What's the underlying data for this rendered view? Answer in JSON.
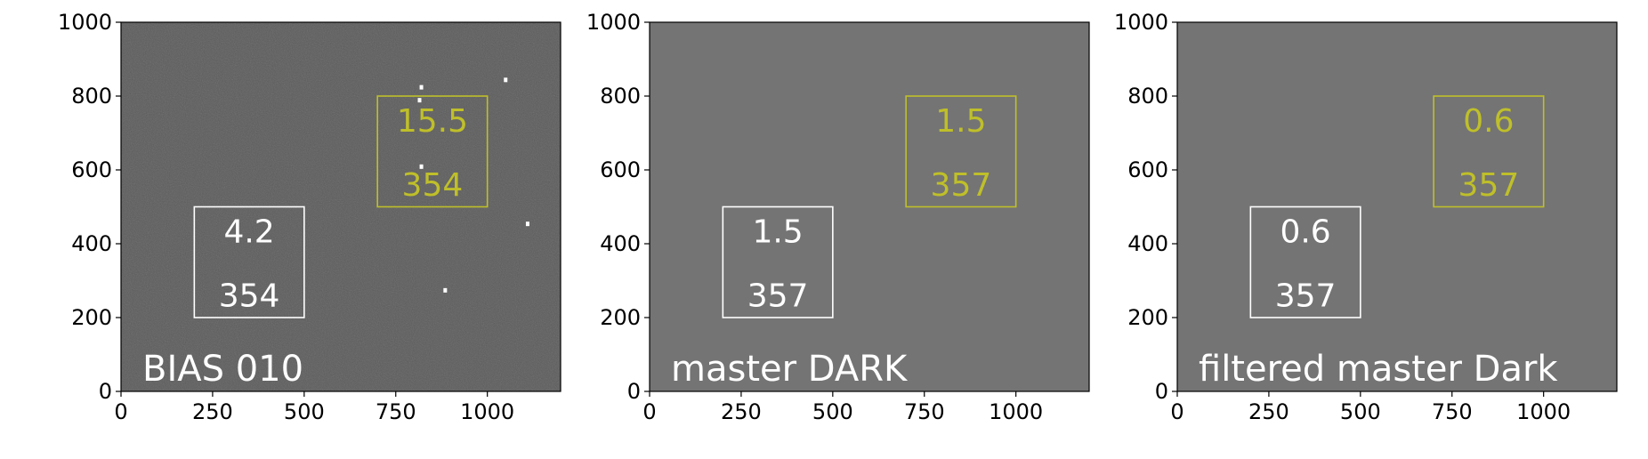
{
  "chart_data": [
    {
      "type": "heatmap",
      "label": "BIAS 010",
      "xlim": [
        0,
        1200
      ],
      "ylim": [
        0,
        1000
      ],
      "x_ticks": [
        "0",
        "250",
        "500",
        "750",
        "1000"
      ],
      "y_ticks": [
        "0",
        "200",
        "400",
        "600",
        "800",
        "1000"
      ],
      "background": "#5c5c5c",
      "noisy": true,
      "hot_pixels": [
        {
          "x": 1050,
          "y": 845
        },
        {
          "x": 820,
          "y": 825
        },
        {
          "x": 820,
          "y": 610
        },
        {
          "x": 1110,
          "y": 455
        },
        {
          "x": 885,
          "y": 275
        },
        {
          "x": 815,
          "y": 790
        }
      ],
      "regions": [
        {
          "x": [
            200,
            500
          ],
          "y": [
            200,
            500
          ],
          "color": "#ffffff",
          "value": "4.2",
          "count": "354"
        },
        {
          "x": [
            700,
            1000
          ],
          "y": [
            500,
            800
          ],
          "color": "#bfbf2a",
          "value": "15.5",
          "count": "354"
        }
      ]
    },
    {
      "type": "heatmap",
      "label": "master DARK",
      "xlim": [
        0,
        1200
      ],
      "ylim": [
        0,
        1000
      ],
      "x_ticks": [
        "0",
        "250",
        "500",
        "750",
        "1000"
      ],
      "y_ticks": [
        "0",
        "200",
        "400",
        "600",
        "800",
        "1000"
      ],
      "background": "#747474",
      "noisy": false,
      "hot_pixels": [],
      "regions": [
        {
          "x": [
            200,
            500
          ],
          "y": [
            200,
            500
          ],
          "color": "#ffffff",
          "value": "1.5",
          "count": "357"
        },
        {
          "x": [
            700,
            1000
          ],
          "y": [
            500,
            800
          ],
          "color": "#bfbf2a",
          "value": "1.5",
          "count": "357"
        }
      ]
    },
    {
      "type": "heatmap",
      "label": "filtered master Dark",
      "xlim": [
        0,
        1200
      ],
      "ylim": [
        0,
        1000
      ],
      "x_ticks": [
        "0",
        "250",
        "500",
        "750",
        "1000"
      ],
      "y_ticks": [
        "0",
        "200",
        "400",
        "600",
        "800",
        "1000"
      ],
      "background": "#747474",
      "noisy": false,
      "hot_pixels": [],
      "regions": [
        {
          "x": [
            200,
            500
          ],
          "y": [
            200,
            500
          ],
          "color": "#ffffff",
          "value": "0.6",
          "count": "357"
        },
        {
          "x": [
            700,
            1000
          ],
          "y": [
            500,
            800
          ],
          "color": "#bfbf2a",
          "value": "0.6",
          "count": "357"
        }
      ]
    }
  ]
}
